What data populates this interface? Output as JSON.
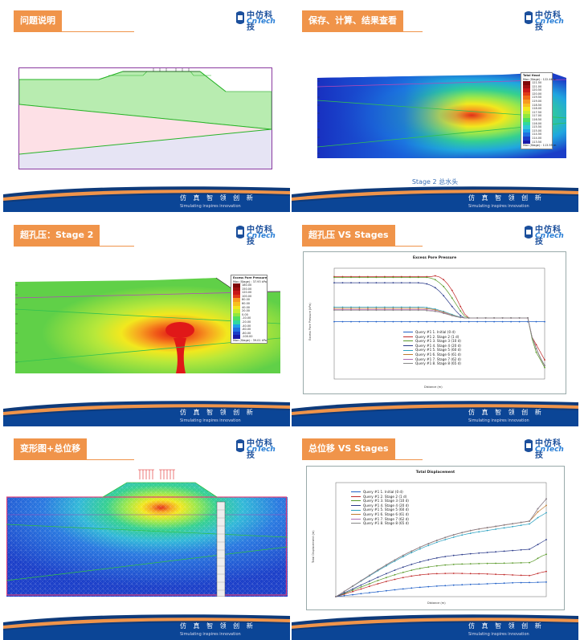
{
  "footer": {
    "cn": "仿 真 智 领 创 新",
    "en": "Simulating inspires innovation"
  },
  "logo": {
    "cn": "中仿科技",
    "en": "CnTech"
  },
  "slides": [
    {
      "title": "问题说明"
    },
    {
      "title": "保存、计算、结果查看",
      "caption": "Stage 2 总水头",
      "legend": {
        "title": "Total Head",
        "sub": "Max (Stage) : 122.46 m",
        "values": [
          "121.50",
          "121.00",
          "120.50",
          "120.00",
          "119.50",
          "119.00",
          "118.50",
          "118.00",
          "117.50",
          "117.00",
          "116.50",
          "116.00",
          "115.50",
          "115.00",
          "114.50",
          "114.00",
          "113.50"
        ],
        "foot": "Max (Stage) : 113.59 m"
      }
    },
    {
      "title": "超孔压：Stage 2",
      "legend": {
        "title": "Excess Pore Pressure",
        "sub": "Max (Stage) : 37.93 kPa",
        "values": [
          "180.00",
          "150.00",
          "120.00",
          "100.00",
          "80.00",
          "60.00",
          "40.00",
          "20.00",
          "0.00",
          "-10.00",
          "-20.00",
          "-40.00",
          "-60.00",
          "-80.00",
          "-100.00"
        ],
        "foot": "Max (Stage) : 39.01 kPa"
      }
    },
    {
      "title": "超孔压 VS Stages"
    },
    {
      "title": "变形图+总位移"
    },
    {
      "title": "总位移 VS Stages"
    }
  ],
  "charts": {
    "colors": [
      "#1f5fc7",
      "#c02a2a",
      "#5a9a2a",
      "#2a3a8a",
      "#2aa0c0",
      "#c07a30",
      "#b06ab0",
      "#888888"
    ],
    "epp": {
      "title": "Excess Pore Pressure",
      "ylabel": "Excess Pore Pressure (kPa)",
      "xlabel": "Distance (m)"
    },
    "disp": {
      "title": "Total Displacement",
      "ylabel": "Total Displacement (m)",
      "xlabel": "Distance (m)"
    }
  },
  "chart_data": [
    {
      "type": "line",
      "title": "Excess Pore Pressure",
      "xlabel": "Distance (m)",
      "ylabel": "Excess Pore Pressure (kPa)",
      "x": [
        0,
        10,
        20,
        30,
        40,
        50,
        60,
        70,
        80,
        90,
        100,
        110,
        120,
        130,
        140,
        150,
        160,
        170,
        180,
        190,
        200,
        210,
        220,
        230,
        240,
        250,
        260,
        270,
        280,
        290,
        300,
        310,
        320,
        330,
        340,
        350,
        360,
        370,
        380,
        390,
        400,
        410,
        420,
        430,
        440,
        450,
        460,
        470,
        480,
        490,
        500
      ],
      "series": [
        {
          "name": "Query #1 1. Initial (0 d)",
          "values": [
            0,
            0,
            0,
            0,
            0,
            0,
            0,
            0,
            0,
            0,
            0,
            0,
            0,
            0,
            0,
            0,
            0,
            0,
            0,
            0,
            0,
            0,
            0,
            0,
            0,
            0,
            0,
            0,
            0,
            0,
            0,
            0,
            0,
            0,
            0,
            0,
            0,
            0,
            0,
            0,
            0,
            0,
            0,
            0,
            0,
            0,
            0,
            0,
            0,
            0,
            0
          ]
        },
        {
          "name": "Query #1 2. Stage 2 (1 d)",
          "values": [
            118,
            118,
            118,
            118,
            118,
            118,
            118,
            118,
            118,
            118,
            118,
            118,
            118,
            118,
            118,
            118,
            118,
            118,
            118,
            118,
            118,
            118,
            118,
            118,
            120,
            117,
            110,
            98,
            82,
            62,
            40,
            20,
            10,
            10,
            10,
            10,
            10,
            10,
            10,
            10,
            10,
            10,
            10,
            10,
            10,
            10,
            10,
            -40,
            -60,
            -80,
            -100
          ]
        },
        {
          "name": "Query #1 3. Stage 3 (10 d)",
          "values": [
            116,
            116,
            116,
            116,
            116,
            116,
            116,
            116,
            116,
            116,
            116,
            116,
            116,
            116,
            116,
            116,
            116,
            116,
            116,
            116,
            116,
            116,
            116,
            114,
            110,
            102,
            92,
            78,
            62,
            45,
            28,
            14,
            10,
            10,
            10,
            10,
            10,
            10,
            10,
            10,
            10,
            10,
            10,
            10,
            10,
            10,
            10,
            -45,
            -80,
            -100,
            -120
          ]
        },
        {
          "name": "Query #1 4. Stage 4 (20 d)",
          "values": [
            102,
            102,
            102,
            102,
            102,
            102,
            102,
            102,
            102,
            102,
            102,
            102,
            102,
            102,
            102,
            102,
            102,
            102,
            102,
            102,
            102,
            101,
            99,
            95,
            89,
            80,
            68,
            54,
            40,
            27,
            16,
            10,
            10,
            10,
            10,
            10,
            10,
            10,
            10,
            10,
            10,
            10,
            10,
            10,
            10,
            10,
            10,
            -40,
            -70,
            -95,
            -115
          ]
        },
        {
          "name": "Query #1 5. Stage 5 (60 d)",
          "values": [
            38,
            38,
            38,
            38,
            38,
            38,
            38,
            38,
            38,
            38,
            38,
            38,
            38,
            38,
            38,
            38,
            38,
            38,
            38,
            38,
            38,
            38,
            37,
            35,
            33,
            30,
            27,
            23,
            19,
            15,
            12,
            10,
            10,
            10,
            10,
            10,
            10,
            10,
            10,
            10,
            10,
            10,
            10,
            10,
            10,
            10,
            10,
            -40,
            -70,
            -95,
            -115
          ]
        },
        {
          "name": "Query #1 6. Stage 6 (61 d)",
          "values": [
            35,
            35,
            35,
            35,
            35,
            35,
            35,
            35,
            35,
            35,
            35,
            35,
            35,
            35,
            35,
            35,
            35,
            35,
            35,
            35,
            35,
            35,
            34,
            33,
            31,
            28,
            25,
            21,
            17,
            14,
            11,
            10,
            10,
            10,
            10,
            10,
            10,
            10,
            10,
            10,
            10,
            10,
            10,
            10,
            10,
            10,
            10,
            -40,
            -70,
            -95,
            -115
          ]
        },
        {
          "name": "Query #1 7. Stage 7 (62 d)",
          "values": [
            32,
            32,
            32,
            32,
            32,
            32,
            32,
            32,
            32,
            32,
            32,
            32,
            32,
            32,
            32,
            32,
            32,
            32,
            32,
            32,
            32,
            32,
            31,
            30,
            28,
            26,
            23,
            20,
            16,
            13,
            11,
            10,
            10,
            10,
            10,
            10,
            10,
            10,
            10,
            10,
            10,
            10,
            10,
            10,
            10,
            10,
            10,
            -40,
            -70,
            -95,
            -115
          ]
        },
        {
          "name": "Query #1 8. Stage 8 (65 d)",
          "values": [
            30,
            30,
            30,
            30,
            30,
            30,
            30,
            30,
            30,
            30,
            30,
            30,
            30,
            30,
            30,
            30,
            30,
            30,
            30,
            30,
            30,
            30,
            29,
            28,
            27,
            25,
            22,
            19,
            16,
            13,
            11,
            10,
            10,
            10,
            10,
            10,
            10,
            10,
            10,
            10,
            10,
            10,
            10,
            10,
            10,
            10,
            10,
            -40,
            -70,
            -95,
            -115
          ]
        }
      ]
    },
    {
      "type": "line",
      "title": "Total Displacement",
      "xlabel": "Distance (m)",
      "ylabel": "Total Displacement (m)",
      "x": [
        0,
        10,
        20,
        30,
        40,
        50,
        60,
        70,
        80,
        90,
        100,
        110,
        120,
        130,
        140,
        150,
        160,
        170,
        180,
        190,
        200,
        210,
        220,
        230,
        240,
        250,
        260,
        270,
        280,
        290,
        300,
        310,
        320,
        330,
        340,
        350,
        360,
        370,
        380,
        390,
        400,
        410,
        420,
        430,
        440,
        450,
        460,
        470,
        480,
        490,
        500
      ],
      "series": [
        {
          "name": "Query #1 1. Initial (0 d)",
          "values": [
            0,
            0.006,
            0.012,
            0.018,
            0.024,
            0.03,
            0.036,
            0.042,
            0.048,
            0.054,
            0.06,
            0.066,
            0.072,
            0.078,
            0.084,
            0.09,
            0.095,
            0.1,
            0.105,
            0.11,
            0.114,
            0.118,
            0.122,
            0.126,
            0.129,
            0.132,
            0.135,
            0.138,
            0.141,
            0.144,
            0.146,
            0.148,
            0.15,
            0.152,
            0.154,
            0.156,
            0.158,
            0.16,
            0.162,
            0.164,
            0.166,
            0.168,
            0.17,
            0.171,
            0.172,
            0.173,
            0.174,
            0.175,
            0.176,
            0.177,
            0.178
          ]
        },
        {
          "name": "Query #1 2. Stage 2 (1 d)",
          "values": [
            0,
            0.014,
            0.03,
            0.046,
            0.062,
            0.078,
            0.094,
            0.11,
            0.126,
            0.142,
            0.158,
            0.172,
            0.186,
            0.2,
            0.212,
            0.224,
            0.234,
            0.244,
            0.252,
            0.26,
            0.266,
            0.272,
            0.276,
            0.28,
            0.282,
            0.284,
            0.285,
            0.286,
            0.286,
            0.286,
            0.285,
            0.284,
            0.283,
            0.282,
            0.281,
            0.28,
            0.278,
            0.276,
            0.274,
            0.272,
            0.27,
            0.268,
            0.266,
            0.264,
            0.262,
            0.26,
            0.258,
            0.27,
            0.285,
            0.3,
            0.31
          ]
        },
        {
          "name": "Query #1 3. Stage 3 (10 d)",
          "values": [
            0,
            0.018,
            0.038,
            0.058,
            0.078,
            0.098,
            0.118,
            0.138,
            0.158,
            0.178,
            0.198,
            0.216,
            0.234,
            0.252,
            0.268,
            0.284,
            0.298,
            0.312,
            0.324,
            0.336,
            0.346,
            0.356,
            0.364,
            0.372,
            0.378,
            0.384,
            0.388,
            0.392,
            0.395,
            0.398,
            0.4,
            0.402,
            0.403,
            0.404,
            0.405,
            0.406,
            0.407,
            0.408,
            0.409,
            0.41,
            0.411,
            0.412,
            0.413,
            0.414,
            0.415,
            0.416,
            0.417,
            0.44,
            0.47,
            0.5,
            0.52
          ]
        },
        {
          "name": "Query #1 4. Stage 4 (20 d)",
          "values": [
            0,
            0.022,
            0.046,
            0.07,
            0.094,
            0.118,
            0.142,
            0.166,
            0.19,
            0.214,
            0.238,
            0.26,
            0.282,
            0.304,
            0.324,
            0.344,
            0.362,
            0.38,
            0.396,
            0.412,
            0.426,
            0.44,
            0.452,
            0.464,
            0.474,
            0.484,
            0.492,
            0.5,
            0.506,
            0.512,
            0.517,
            0.522,
            0.526,
            0.53,
            0.534,
            0.538,
            0.542,
            0.546,
            0.55,
            0.554,
            0.558,
            0.562,
            0.566,
            0.57,
            0.574,
            0.578,
            0.582,
            0.61,
            0.64,
            0.67,
            0.7
          ]
        },
        {
          "name": "Query #1 5. Stage 5 (60 d)",
          "values": [
            0,
            0.03,
            0.062,
            0.094,
            0.126,
            0.158,
            0.19,
            0.222,
            0.254,
            0.286,
            0.318,
            0.348,
            0.378,
            0.408,
            0.436,
            0.464,
            0.49,
            0.516,
            0.54,
            0.564,
            0.586,
            0.608,
            0.628,
            0.648,
            0.666,
            0.684,
            0.7,
            0.716,
            0.73,
            0.744,
            0.756,
            0.768,
            0.778,
            0.788,
            0.796,
            0.804,
            0.812,
            0.82,
            0.828,
            0.836,
            0.844,
            0.852,
            0.86,
            0.868,
            0.876,
            0.884,
            0.892,
            0.93,
            0.97,
            1.0,
            1.03
          ]
        },
        {
          "name": "Query #1 6. Stage 6 (61 d)",
          "values": [
            0,
            0.03,
            0.063,
            0.096,
            0.129,
            0.162,
            0.195,
            0.228,
            0.261,
            0.294,
            0.327,
            0.358,
            0.389,
            0.42,
            0.449,
            0.478,
            0.505,
            0.532,
            0.557,
            0.582,
            0.605,
            0.628,
            0.649,
            0.67,
            0.689,
            0.708,
            0.725,
            0.742,
            0.757,
            0.772,
            0.785,
            0.798,
            0.809,
            0.82,
            0.829,
            0.838,
            0.846,
            0.854,
            0.862,
            0.87,
            0.878,
            0.886,
            0.894,
            0.902,
            0.91,
            0.918,
            0.926,
            0.98,
            1.04,
            1.08,
            1.12
          ]
        },
        {
          "name": "Query #1 7. Stage 7 (62 d)",
          "values": [
            0,
            0.031,
            0.064,
            0.097,
            0.13,
            0.163,
            0.196,
            0.229,
            0.262,
            0.295,
            0.328,
            0.36,
            0.391,
            0.422,
            0.451,
            0.48,
            0.507,
            0.534,
            0.559,
            0.584,
            0.607,
            0.63,
            0.651,
            0.672,
            0.691,
            0.71,
            0.727,
            0.744,
            0.759,
            0.774,
            0.787,
            0.8,
            0.811,
            0.822,
            0.831,
            0.84,
            0.848,
            0.856,
            0.864,
            0.872,
            0.88,
            0.888,
            0.896,
            0.904,
            0.912,
            0.92,
            0.928,
            1.0,
            1.08,
            1.14,
            1.2
          ]
        },
        {
          "name": "Query #1 8. Stage 8 (65 d)",
          "values": [
            0,
            0.031,
            0.064,
            0.097,
            0.13,
            0.163,
            0.196,
            0.229,
            0.262,
            0.295,
            0.328,
            0.36,
            0.391,
            0.422,
            0.451,
            0.48,
            0.507,
            0.534,
            0.559,
            0.584,
            0.607,
            0.63,
            0.651,
            0.672,
            0.691,
            0.71,
            0.727,
            0.744,
            0.759,
            0.774,
            0.787,
            0.8,
            0.811,
            0.822,
            0.831,
            0.84,
            0.848,
            0.856,
            0.864,
            0.872,
            0.88,
            0.888,
            0.896,
            0.904,
            0.912,
            0.92,
            0.928,
            1.0,
            1.08,
            1.14,
            1.2
          ]
        }
      ]
    }
  ]
}
